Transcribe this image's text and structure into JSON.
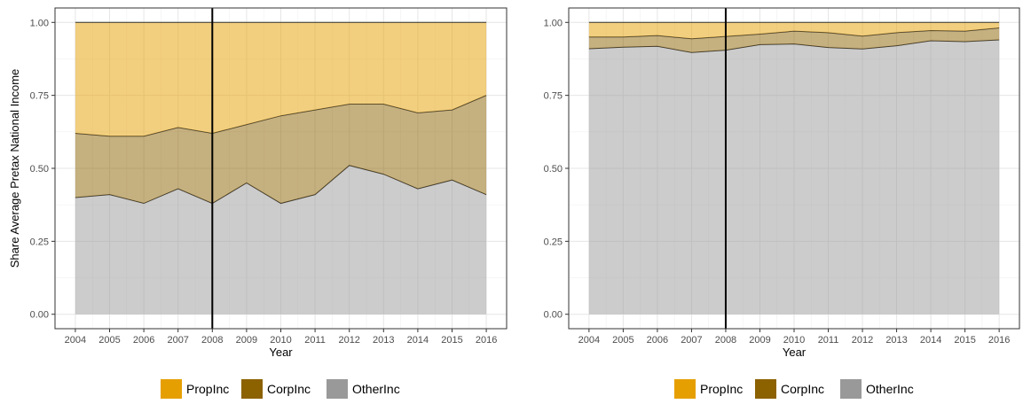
{
  "chart_data": [
    {
      "type": "area",
      "stacked": true,
      "x": [
        2004,
        2005,
        2006,
        2007,
        2008,
        2009,
        2010,
        2011,
        2012,
        2013,
        2014,
        2015,
        2016
      ],
      "series": [
        {
          "name": "OtherInc",
          "color": "#999999",
          "values": [
            0.4,
            0.41,
            0.38,
            0.43,
            0.38,
            0.45,
            0.38,
            0.41,
            0.51,
            0.48,
            0.43,
            0.46,
            0.41
          ]
        },
        {
          "name": "CorpInc",
          "color": "#8C6100",
          "values": [
            0.22,
            0.2,
            0.23,
            0.21,
            0.24,
            0.2,
            0.3,
            0.29,
            0.21,
            0.24,
            0.26,
            0.24,
            0.34
          ]
        },
        {
          "name": "PropInc",
          "color": "#E69F00",
          "values": [
            0.38,
            0.39,
            0.39,
            0.36,
            0.38,
            0.35,
            0.32,
            0.3,
            0.28,
            0.28,
            0.31,
            0.3,
            0.25
          ]
        }
      ],
      "xlabel": "Year",
      "ylabel": "Share Average Pretax National Income",
      "ylim": [
        0,
        1
      ],
      "yticks": [
        "0.00",
        "0.25",
        "0.50",
        "0.75",
        "1.00"
      ],
      "vline": 2008,
      "grid": true,
      "legend_position": "bottom"
    },
    {
      "type": "area",
      "stacked": true,
      "x": [
        2004,
        2005,
        2006,
        2007,
        2008,
        2009,
        2010,
        2011,
        2012,
        2013,
        2014,
        2015,
        2016
      ],
      "series": [
        {
          "name": "OtherInc",
          "color": "#999999",
          "values": [
            0.91,
            0.915,
            0.918,
            0.897,
            0.905,
            0.924,
            0.926,
            0.914,
            0.909,
            0.92,
            0.937,
            0.934,
            0.94
          ]
        },
        {
          "name": "CorpInc",
          "color": "#8C6100",
          "values": [
            0.04,
            0.035,
            0.037,
            0.047,
            0.047,
            0.036,
            0.044,
            0.051,
            0.044,
            0.045,
            0.035,
            0.036,
            0.041
          ]
        },
        {
          "name": "PropInc",
          "color": "#E69F00",
          "values": [
            0.05,
            0.05,
            0.045,
            0.056,
            0.048,
            0.04,
            0.03,
            0.035,
            0.047,
            0.035,
            0.028,
            0.03,
            0.019
          ]
        }
      ],
      "xlabel": "Year",
      "ylabel": "",
      "ylim": [
        0,
        1
      ],
      "yticks": [
        "0.00",
        "0.25",
        "0.50",
        "0.75",
        "1.00"
      ],
      "vline": 2008,
      "grid": true,
      "legend_position": "bottom"
    }
  ],
  "legend": [
    {
      "name": "PropInc",
      "color": "#E69F00"
    },
    {
      "name": "CorpInc",
      "color": "#8C6100"
    },
    {
      "name": "OtherInc",
      "color": "#999999"
    }
  ]
}
